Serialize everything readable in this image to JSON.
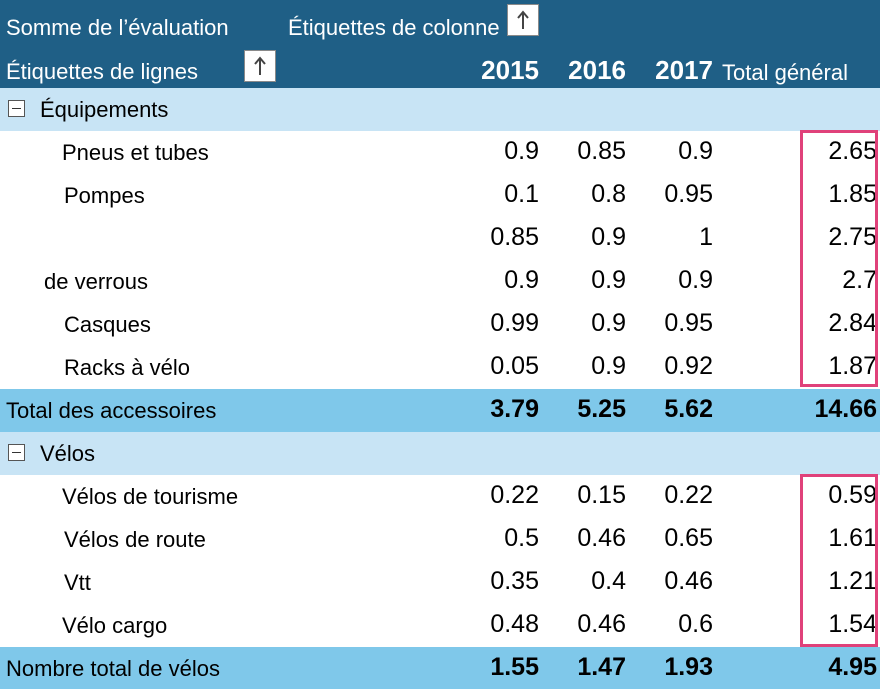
{
  "header": {
    "values_label": "Somme de l’évaluation",
    "columns_label": "Étiquettes de colonne",
    "rows_label": "Étiquettes de lignes",
    "years": [
      "2015",
      "2016",
      "2017"
    ],
    "grand_total_label": "Total général",
    "sort_icon": "arrow-up-icon"
  },
  "groups": [
    {
      "name": "Équipements",
      "collapse_icon": "minus-icon",
      "rows": [
        {
          "label": "Pneus et tubes",
          "values": [
            "0.9",
            "0.85",
            "0.9"
          ],
          "total": "2.65"
        },
        {
          "label": "Pompes",
          "values": [
            "0.1",
            "0.8",
            "0.95"
          ],
          "total": "1.85"
        },
        {
          "label": "",
          "values": [
            "0.85",
            "0.9",
            "1"
          ],
          "total": "2.75"
        },
        {
          "label": "de verrous",
          "values": [
            "0.9",
            "0.9",
            "0.9"
          ],
          "total": "2.7"
        },
        {
          "label": "Casques",
          "values": [
            "0.99",
            "0.9",
            "0.95"
          ],
          "total": "2.84"
        },
        {
          "label": "Racks à vélo",
          "values": [
            "0.05",
            "0.9",
            "0.92"
          ],
          "total": "1.87"
        }
      ],
      "subtotal": {
        "label": "Total des accessoires",
        "values": [
          "3.79",
          "5.25",
          "5.62"
        ],
        "total": "14.66"
      }
    },
    {
      "name": "Vélos",
      "collapse_icon": "minus-icon",
      "rows": [
        {
          "label": "Vélos de tourisme",
          "values": [
            "0.22",
            "0.15",
            "0.22"
          ],
          "total": "0.59"
        },
        {
          "label": "Vélos de route",
          "values": [
            "0.5",
            "0.46",
            "0.65"
          ],
          "total": "1.61"
        },
        {
          "label": "Vtt",
          "values": [
            "0.35",
            "0.4",
            "0.46"
          ],
          "total": "1.21"
        },
        {
          "label": "Vélo cargo",
          "values": [
            "0.48",
            "0.46",
            "0.6"
          ],
          "total": "1.54"
        }
      ],
      "subtotal": {
        "label": "Nombre total de vélos",
        "values": [
          "1.55",
          "1.47",
          "1.93"
        ],
        "total": "4.95"
      }
    }
  ],
  "colors": {
    "header": "#1f5f86",
    "group_row": "#c8e4f5",
    "total_row": "#7fc8ea",
    "highlight": "#e0417a"
  }
}
